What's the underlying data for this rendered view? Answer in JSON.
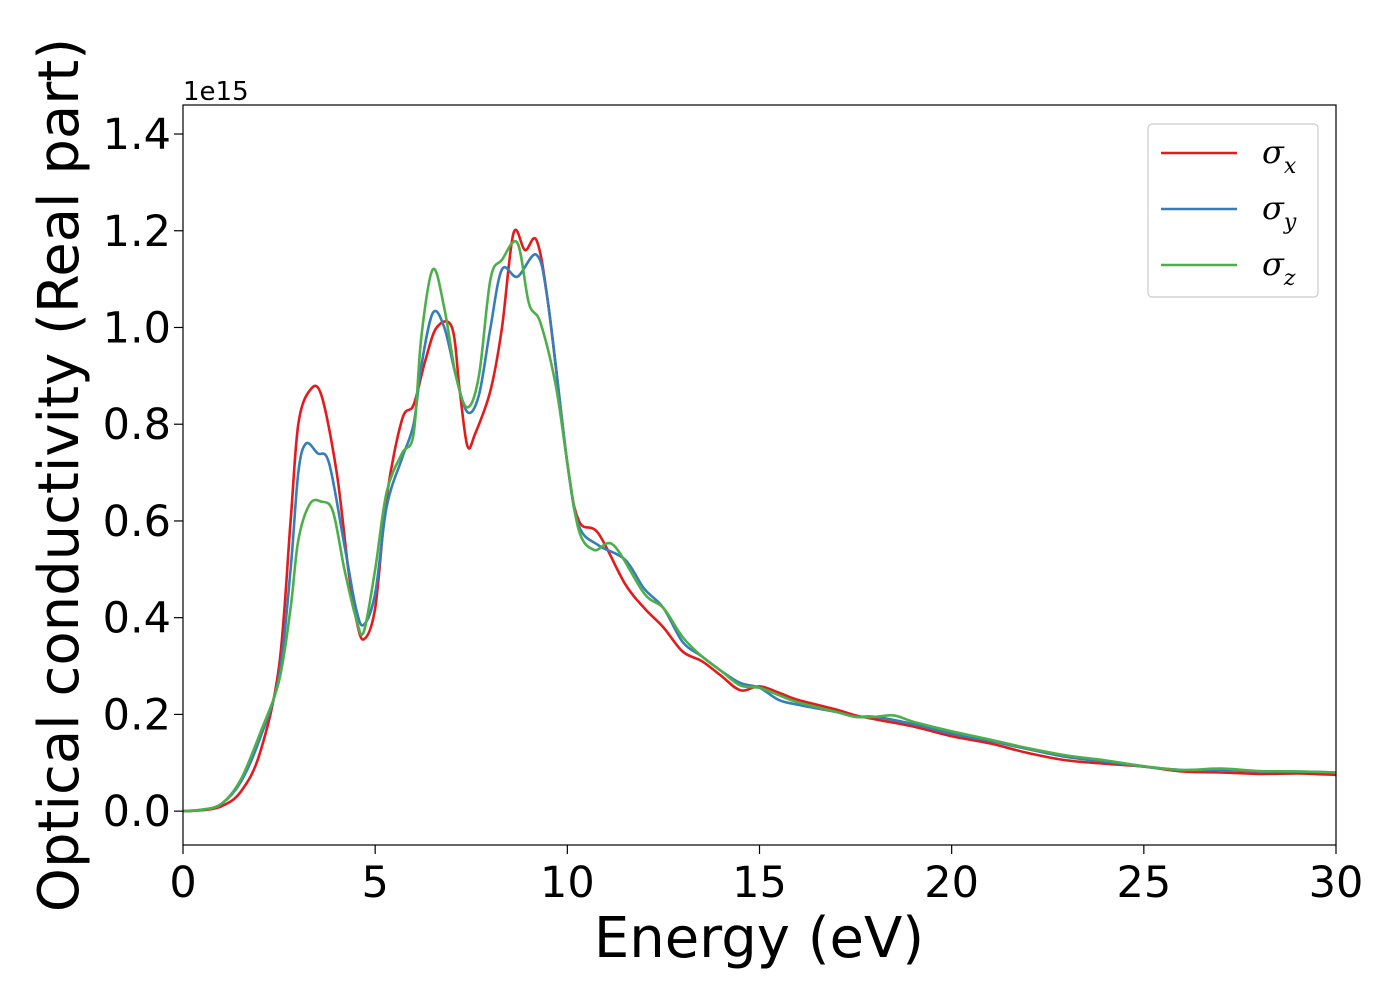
{
  "chart_data": {
    "type": "line",
    "xlabel": "Energy (eV)",
    "ylabel": "Optical conductivity (Real part)",
    "y_offset_label": "1e15",
    "xlim": [
      0,
      30
    ],
    "ylim": [
      -0.07,
      1.46
    ],
    "x_ticks": [
      0,
      5,
      10,
      15,
      20,
      25,
      30
    ],
    "x_tick_labels": [
      "0",
      "5",
      "10",
      "15",
      "20",
      "25",
      "30"
    ],
    "y_ticks": [
      0.0,
      0.2,
      0.4,
      0.6,
      0.8,
      1.0,
      1.2,
      1.4
    ],
    "y_tick_labels": [
      "0.0",
      "0.2",
      "0.4",
      "0.6",
      "0.8",
      "1.0",
      "1.2",
      "1.4"
    ],
    "grid": false,
    "legend_position": "top-right",
    "series": [
      {
        "name": "σ",
        "subscript": "x",
        "color": "#e41a1c",
        "points": [
          [
            0,
            0
          ],
          [
            0.5,
            0.002
          ],
          [
            1,
            0.01
          ],
          [
            1.5,
            0.04
          ],
          [
            2,
            0.12
          ],
          [
            2.5,
            0.3
          ],
          [
            2.8,
            0.6
          ],
          [
            3,
            0.8
          ],
          [
            3.3,
            0.87
          ],
          [
            3.6,
            0.86
          ],
          [
            4,
            0.7
          ],
          [
            4.3,
            0.5
          ],
          [
            4.5,
            0.4
          ],
          [
            4.7,
            0.355
          ],
          [
            5,
            0.42
          ],
          [
            5.3,
            0.65
          ],
          [
            5.7,
            0.81
          ],
          [
            6,
            0.84
          ],
          [
            6.3,
            0.93
          ],
          [
            6.6,
            1.0
          ],
          [
            7,
            1.0
          ],
          [
            7.2,
            0.87
          ],
          [
            7.4,
            0.755
          ],
          [
            7.6,
            0.78
          ],
          [
            8,
            0.87
          ],
          [
            8.3,
            1.0
          ],
          [
            8.6,
            1.195
          ],
          [
            8.9,
            1.16
          ],
          [
            9.2,
            1.18
          ],
          [
            9.5,
            1.05
          ],
          [
            10,
            0.72
          ],
          [
            10.3,
            0.6
          ],
          [
            10.8,
            0.575
          ],
          [
            11.5,
            0.47
          ],
          [
            12,
            0.42
          ],
          [
            12.5,
            0.38
          ],
          [
            13,
            0.33
          ],
          [
            13.5,
            0.31
          ],
          [
            14,
            0.28
          ],
          [
            14.5,
            0.25
          ],
          [
            15,
            0.258
          ],
          [
            15.5,
            0.245
          ],
          [
            16,
            0.23
          ],
          [
            17,
            0.21
          ],
          [
            17.5,
            0.198
          ],
          [
            18,
            0.19
          ],
          [
            19,
            0.175
          ],
          [
            20,
            0.155
          ],
          [
            21,
            0.14
          ],
          [
            22,
            0.12
          ],
          [
            23,
            0.105
          ],
          [
            24,
            0.098
          ],
          [
            25,
            0.092
          ],
          [
            26,
            0.082
          ],
          [
            27,
            0.08
          ],
          [
            28,
            0.077
          ],
          [
            29,
            0.078
          ],
          [
            30,
            0.075
          ]
        ]
      },
      {
        "name": "σ",
        "subscript": "y",
        "color": "#377eb8",
        "points": [
          [
            0,
            0
          ],
          [
            0.5,
            0.003
          ],
          [
            1,
            0.015
          ],
          [
            1.5,
            0.06
          ],
          [
            2,
            0.15
          ],
          [
            2.5,
            0.28
          ],
          [
            2.8,
            0.5
          ],
          [
            3,
            0.7
          ],
          [
            3.2,
            0.76
          ],
          [
            3.5,
            0.74
          ],
          [
            3.8,
            0.72
          ],
          [
            4.2,
            0.55
          ],
          [
            4.5,
            0.42
          ],
          [
            4.7,
            0.385
          ],
          [
            5,
            0.45
          ],
          [
            5.3,
            0.63
          ],
          [
            5.7,
            0.73
          ],
          [
            6,
            0.8
          ],
          [
            6.2,
            0.92
          ],
          [
            6.5,
            1.03
          ],
          [
            6.8,
            1.0
          ],
          [
            7.1,
            0.9
          ],
          [
            7.4,
            0.825
          ],
          [
            7.7,
            0.86
          ],
          [
            8,
            1.0
          ],
          [
            8.3,
            1.12
          ],
          [
            8.7,
            1.105
          ],
          [
            9.2,
            1.15
          ],
          [
            9.5,
            1.05
          ],
          [
            10,
            0.72
          ],
          [
            10.3,
            0.59
          ],
          [
            10.8,
            0.55
          ],
          [
            11.5,
            0.52
          ],
          [
            12,
            0.46
          ],
          [
            12.5,
            0.42
          ],
          [
            13,
            0.35
          ],
          [
            13.5,
            0.32
          ],
          [
            14,
            0.29
          ],
          [
            14.5,
            0.265
          ],
          [
            15,
            0.255
          ],
          [
            15.5,
            0.23
          ],
          [
            16,
            0.22
          ],
          [
            17,
            0.205
          ],
          [
            17.5,
            0.195
          ],
          [
            18,
            0.195
          ],
          [
            19,
            0.18
          ],
          [
            20,
            0.16
          ],
          [
            21,
            0.145
          ],
          [
            22,
            0.128
          ],
          [
            23,
            0.112
          ],
          [
            24,
            0.102
          ],
          [
            25,
            0.092
          ],
          [
            26,
            0.085
          ],
          [
            27,
            0.085
          ],
          [
            28,
            0.082
          ],
          [
            29,
            0.082
          ],
          [
            30,
            0.08
          ]
        ]
      },
      {
        "name": "σ",
        "subscript": "z",
        "color": "#4daf4a",
        "points": [
          [
            0,
            0
          ],
          [
            0.5,
            0.003
          ],
          [
            1,
            0.015
          ],
          [
            1.5,
            0.065
          ],
          [
            2,
            0.16
          ],
          [
            2.5,
            0.27
          ],
          [
            2.8,
            0.42
          ],
          [
            3,
            0.56
          ],
          [
            3.3,
            0.635
          ],
          [
            3.6,
            0.64
          ],
          [
            3.9,
            0.62
          ],
          [
            4.2,
            0.5
          ],
          [
            4.5,
            0.4
          ],
          [
            4.7,
            0.37
          ],
          [
            5,
            0.5
          ],
          [
            5.3,
            0.66
          ],
          [
            5.7,
            0.74
          ],
          [
            6,
            0.78
          ],
          [
            6.2,
            0.98
          ],
          [
            6.5,
            1.12
          ],
          [
            6.8,
            1.04
          ],
          [
            7.1,
            0.9
          ],
          [
            7.4,
            0.835
          ],
          [
            7.7,
            0.9
          ],
          [
            8,
            1.1
          ],
          [
            8.3,
            1.14
          ],
          [
            8.7,
            1.175
          ],
          [
            9,
            1.05
          ],
          [
            9.3,
            1.01
          ],
          [
            9.7,
            0.88
          ],
          [
            10,
            0.72
          ],
          [
            10.3,
            0.58
          ],
          [
            10.7,
            0.54
          ],
          [
            11.2,
            0.55
          ],
          [
            12,
            0.45
          ],
          [
            12.5,
            0.42
          ],
          [
            13,
            0.36
          ],
          [
            13.5,
            0.32
          ],
          [
            14,
            0.29
          ],
          [
            14.5,
            0.26
          ],
          [
            15,
            0.255
          ],
          [
            15.5,
            0.24
          ],
          [
            16,
            0.225
          ],
          [
            17,
            0.205
          ],
          [
            17.5,
            0.195
          ],
          [
            18,
            0.195
          ],
          [
            18.5,
            0.198
          ],
          [
            19,
            0.185
          ],
          [
            20,
            0.165
          ],
          [
            21,
            0.148
          ],
          [
            22,
            0.13
          ],
          [
            23,
            0.115
          ],
          [
            24,
            0.105
          ],
          [
            25,
            0.093
          ],
          [
            26,
            0.085
          ],
          [
            27,
            0.088
          ],
          [
            28,
            0.083
          ],
          [
            29,
            0.082
          ],
          [
            30,
            0.08
          ]
        ]
      }
    ]
  }
}
